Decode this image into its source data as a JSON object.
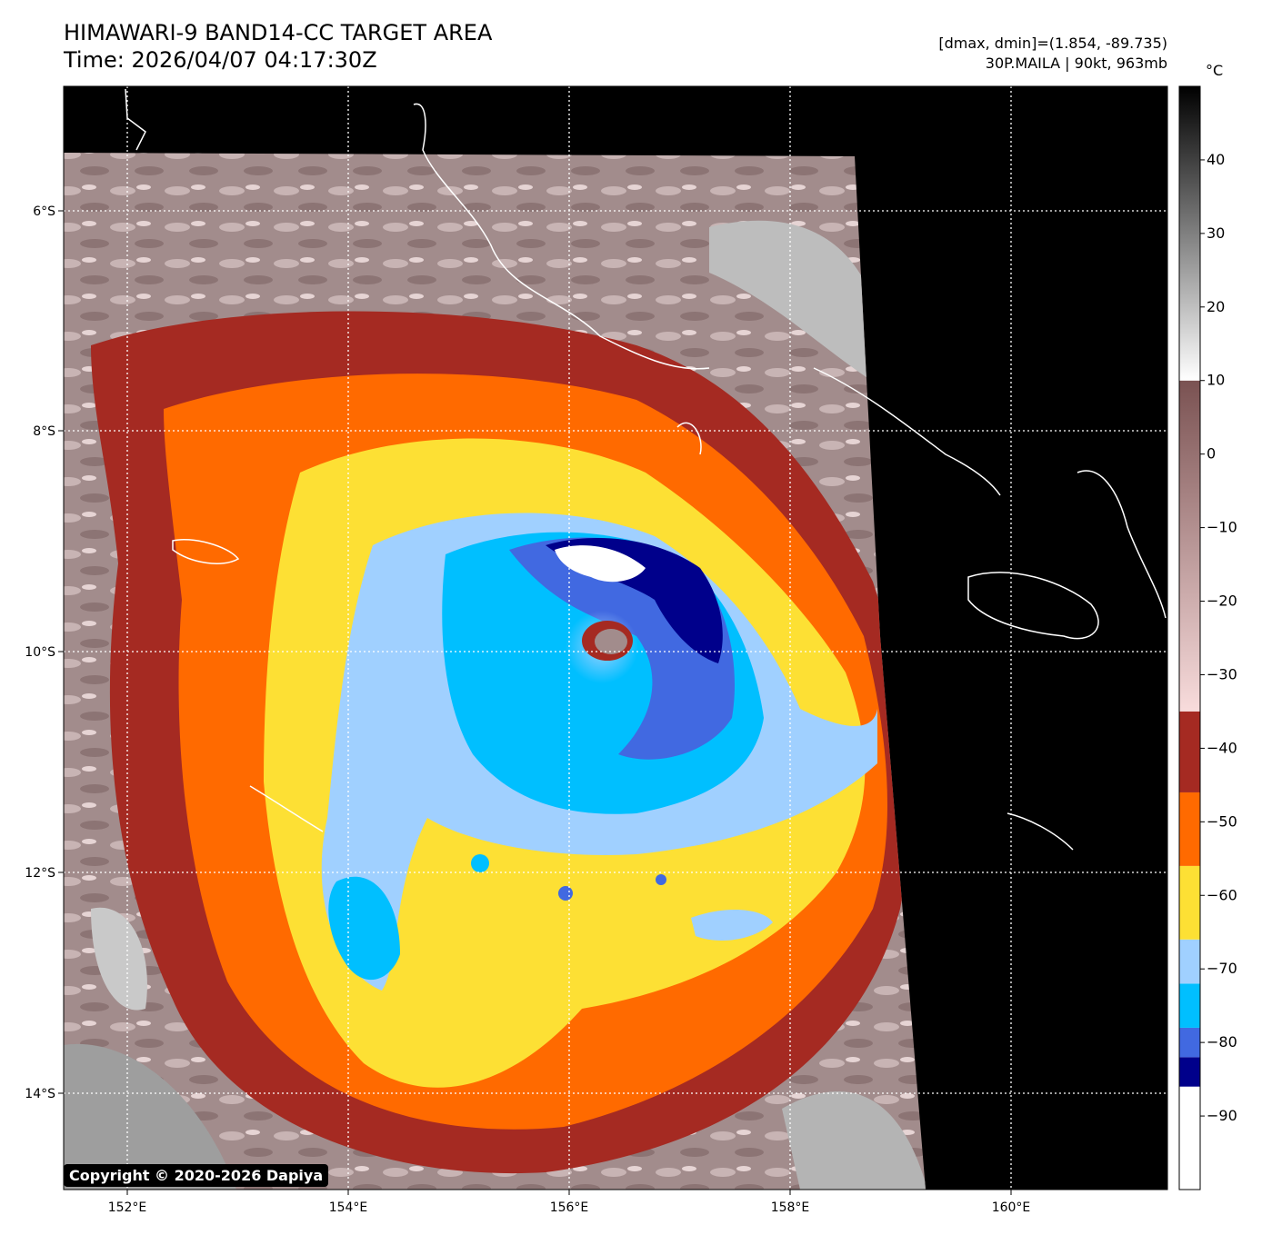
{
  "header": {
    "title_line1": "HIMAWARI-9 BAND14-CC TARGET AREA",
    "title_line2": "Time: 2026/04/07 04:17:30Z",
    "info_line1": "[dmax, dmin]=(1.854, -89.735)",
    "info_line2": "30P.MAILA | 90kt, 963mb"
  },
  "map": {
    "lon_labels": [
      "152°E",
      "154°E",
      "156°E",
      "158°E",
      "160°E"
    ],
    "lat_labels": [
      "6°S",
      "8°S",
      "10°S",
      "12°S",
      "14°S"
    ],
    "copyright": "Copyright © 2020-2026 Dapiya",
    "grid_style": "dotted white"
  },
  "colorbar": {
    "unit": "°C",
    "tick_labels": [
      "40",
      "30",
      "20",
      "10",
      "0",
      "−10",
      "−20",
      "−30",
      "−40",
      "−50",
      "−60",
      "−70",
      "−80",
      "−90"
    ],
    "bands": [
      {
        "from": -100,
        "to": -86,
        "color": "#ffffff"
      },
      {
        "from": -86,
        "to": -82,
        "color": "#00008b"
      },
      {
        "from": -82,
        "to": -78,
        "color": "#4169e1"
      },
      {
        "from": -78,
        "to": -72,
        "color": "#00bfff"
      },
      {
        "from": -72,
        "to": -66,
        "color": "#a0d0ff"
      },
      {
        "from": -66,
        "to": -56,
        "color": "#fde034"
      },
      {
        "from": -56,
        "to": -46,
        "color": "#ff6a00"
      },
      {
        "from": -46,
        "to": -35,
        "color": "#a52a22"
      }
    ],
    "gradients": [
      {
        "from": -35,
        "to": 10,
        "color_from": "#f8dcdc",
        "color_to": "#7a5252"
      },
      {
        "from": 10,
        "to": 50,
        "color_from": "#ffffff",
        "color_to": "#000000"
      }
    ],
    "range": [
      -100,
      50
    ]
  },
  "storm": {
    "name": "30P.MAILA",
    "intensity": "90kt",
    "pressure": "963mb"
  }
}
